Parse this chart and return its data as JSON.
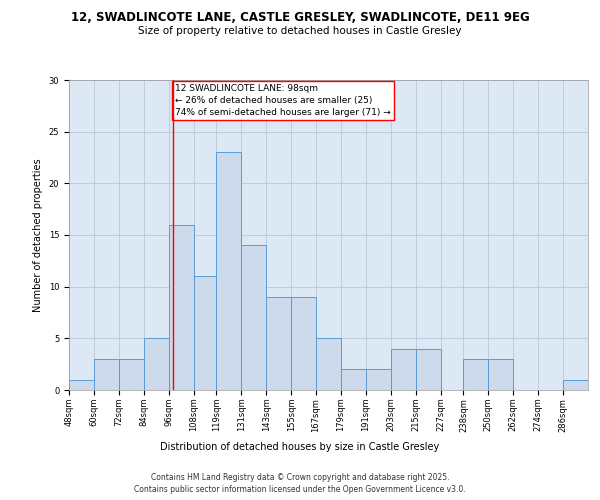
{
  "title_line1": "12, SWADLINCOTE LANE, CASTLE GRESLEY, SWADLINCOTE, DE11 9EG",
  "title_line2": "Size of property relative to detached houses in Castle Gresley",
  "xlabel": "Distribution of detached houses by size in Castle Gresley",
  "ylabel": "Number of detached properties",
  "bar_edges": [
    48,
    60,
    72,
    84,
    96,
    108,
    119,
    131,
    143,
    155,
    167,
    179,
    191,
    203,
    215,
    227,
    238,
    250,
    262,
    274,
    286,
    298
  ],
  "bar_heights": [
    1,
    3,
    3,
    5,
    16,
    11,
    23,
    14,
    9,
    9,
    5,
    2,
    2,
    4,
    4,
    0,
    3,
    3,
    0,
    0,
    1
  ],
  "bar_color": "#ccdaeb",
  "bar_edge_color": "#5b9bd5",
  "bar_linewidth": 0.7,
  "grid_color": "#b8c8d8",
  "bg_color": "#dce8f4",
  "red_line_x": 98,
  "annotation_box_text": "12 SWADLINCOTE LANE: 98sqm\n← 26% of detached houses are smaller (25)\n74% of semi-detached houses are larger (71) →",
  "ylim": [
    0,
    30
  ],
  "yticks": [
    0,
    5,
    10,
    15,
    20,
    25,
    30
  ],
  "footer_line1": "Contains HM Land Registry data © Crown copyright and database right 2025.",
  "footer_line2": "Contains public sector information licensed under the Open Government Licence v3.0.",
  "title_fontsize": 8.5,
  "subtitle_fontsize": 7.5,
  "axis_label_fontsize": 7,
  "tick_fontsize": 6,
  "annotation_fontsize": 6.5,
  "footer_fontsize": 5.5
}
